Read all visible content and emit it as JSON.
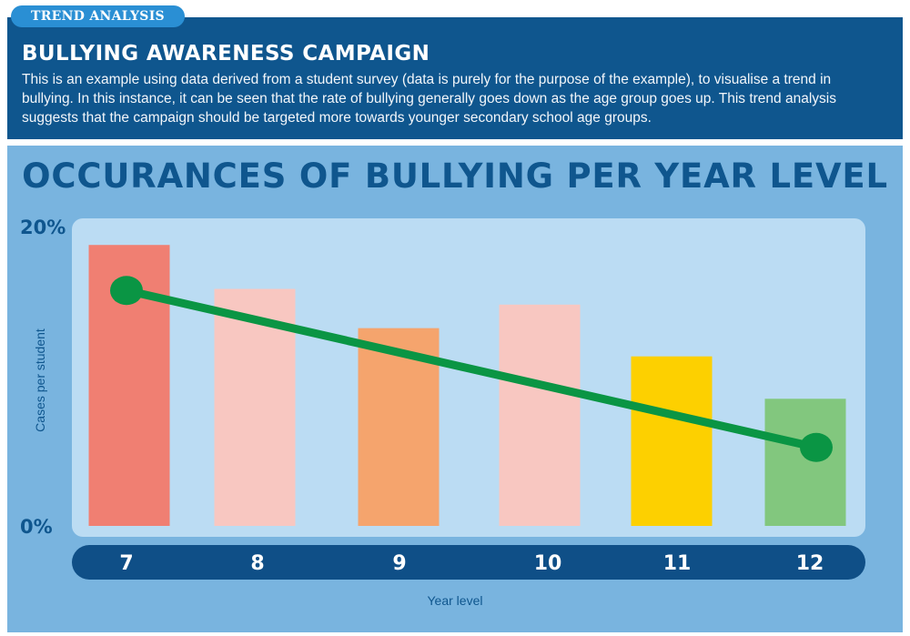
{
  "tag": "TREND ANALYSIS",
  "header": {
    "title": "BULLYING AWARENESS CAMPAIGN",
    "description": "This is an example using data derived from a student survey (data is purely for the purpose of the example), to visualise a trend in bullying. In this instance, it can be seen that the rate of bullying generally goes down as the age group goes up. This trend analysis suggests that the campaign should be targeted more towards younger secondary school age groups."
  },
  "chart_data": {
    "type": "bar",
    "title": "OCCURANCES OF BULLYING PER YEAR LEVEL",
    "categories": [
      "7",
      "8",
      "9",
      "10",
      "11",
      "12"
    ],
    "values": [
      17.9,
      15.1,
      12.6,
      14.1,
      10.8,
      8.1
    ],
    "bar_colors": [
      "#f07f72",
      "#f8c7c1",
      "#f5a46d",
      "#f8c7c1",
      "#fdd000",
      "#82c77e"
    ],
    "xlabel": "Year level",
    "ylabel": "Cases per student",
    "ylim": [
      0,
      20
    ],
    "yticks": [
      "20%",
      "0%"
    ],
    "trend_line": {
      "start": {
        "x": "7",
        "y": 15.0
      },
      "end": {
        "x": "12",
        "y": 5.0
      },
      "color": "#0a9544"
    }
  }
}
